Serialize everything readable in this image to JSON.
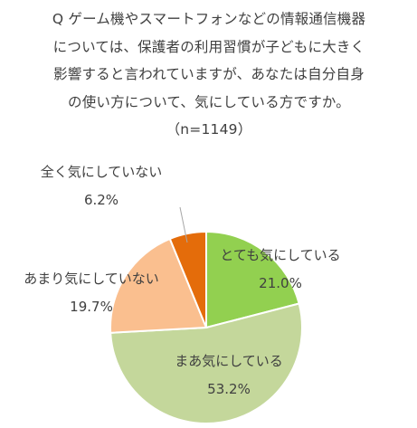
{
  "question": "Q ゲーム機やスマートフォンなどの情報通信機器については、保護者の利用習慣が子どもに大きく影響すると言われていますが、あなたは自分自身の使い方について、気にしている方ですか。（n=1149）",
  "chart_data": {
    "type": "pie",
    "title": "Q ゲーム機やスマートフォンなどの情報通信機器については、保護者の利用習慣が子どもに大きく影響すると言われていますが、あなたは自分自身の使い方について、気にしている方ですか。（n=1149）",
    "sample_size": "n=1149",
    "start_angle_deg": 0,
    "direction": "clockwise",
    "slices": [
      {
        "label": "とても気にしている",
        "value": 21.0,
        "display": "21.0%",
        "color": "#92d050"
      },
      {
        "label": "まあ気にしている",
        "value": 53.2,
        "display": "53.2%",
        "color": "#c4d79b"
      },
      {
        "label": "あまり気にしていない",
        "value": 19.7,
        "display": "19.7%",
        "color": "#fabf8f"
      },
      {
        "label": "全く気にしていない",
        "value": 6.2,
        "display": "6.2%",
        "color": "#e46c0a"
      }
    ],
    "legend": "none"
  }
}
